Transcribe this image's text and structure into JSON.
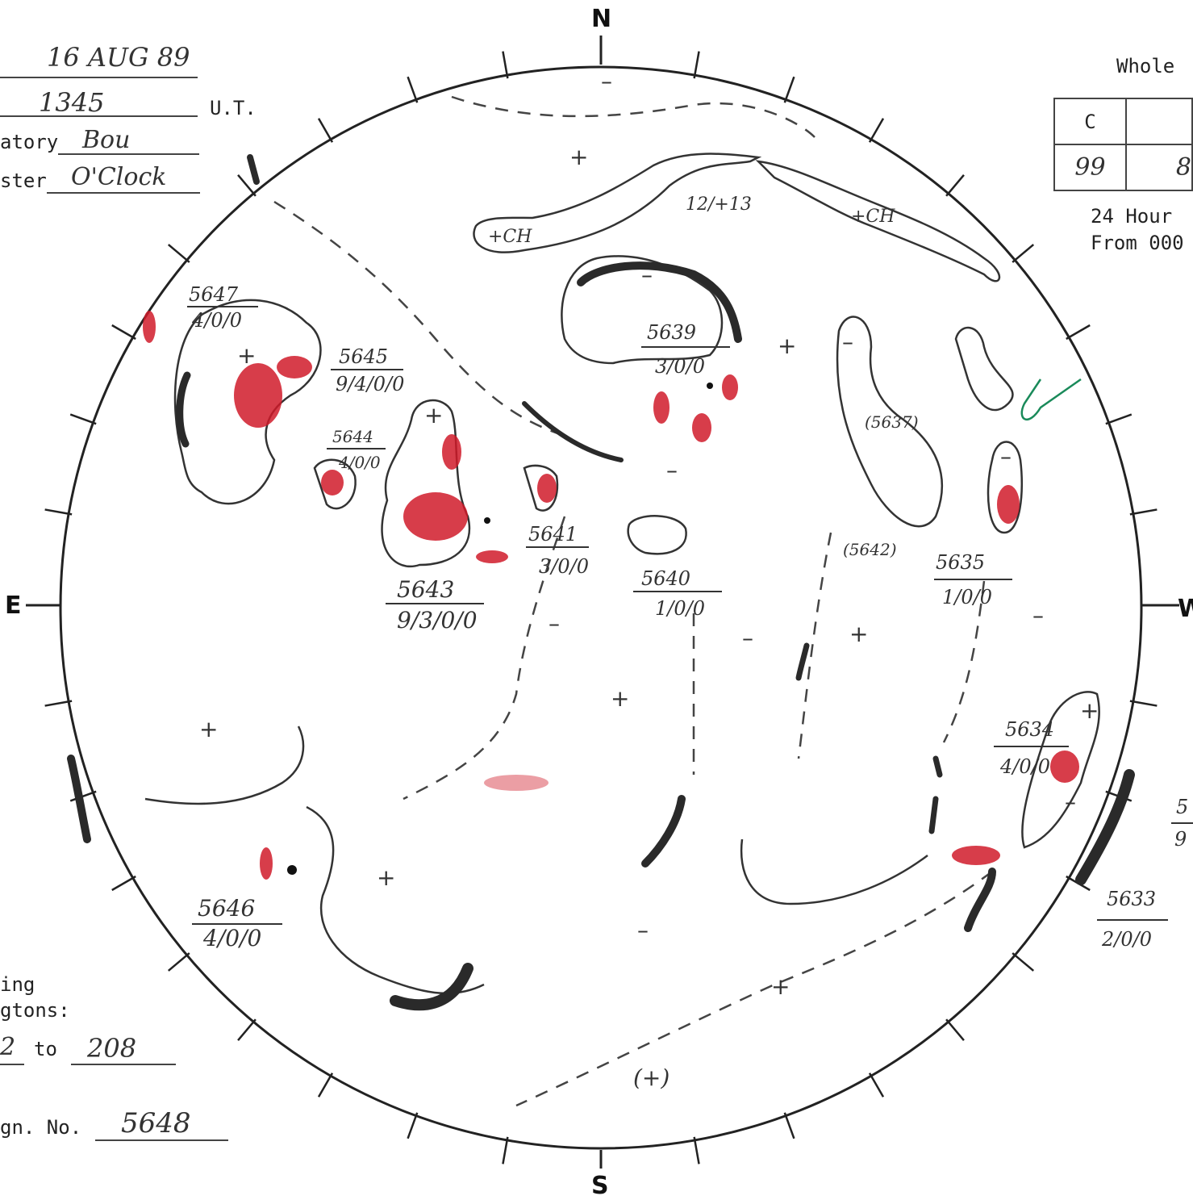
{
  "header": {
    "date": "16 AUG 89",
    "time": "1345",
    "time_unit": "U.T.",
    "observatory_label": "atory",
    "observatory": "Bou",
    "forecaster_label": "ster",
    "forecaster": "O'Clock"
  },
  "whole_disk": {
    "title": "Whole",
    "columns": [
      "C",
      ""
    ],
    "values": [
      "99",
      "8"
    ],
    "note_line1": "24 Hour",
    "note_line2": "From 000"
  },
  "compass": {
    "north": "N",
    "south": "S",
    "east": "E",
    "west": "W"
  },
  "footer": {
    "line1": "ing",
    "line2": "gtons:",
    "range_start": "2",
    "range_to": "to",
    "range_end": "208",
    "rotation_label": "gn. No.",
    "rotation": "5648"
  },
  "regions": [
    {
      "number": "5647",
      "class": "4/0/0"
    },
    {
      "number": "5645",
      "class": "9/4/0/0"
    },
    {
      "number": "5644",
      "class": "4/0/0"
    },
    {
      "number": "5643",
      "class": "9/3/0/0"
    },
    {
      "number": "5641",
      "class": "3/0/0"
    },
    {
      "number": "5639",
      "class": "3/0/0"
    },
    {
      "number": "5640",
      "class": "1/0/0"
    },
    {
      "number": "(5637)",
      "class": ""
    },
    {
      "number": "(5642)",
      "class": ""
    },
    {
      "number": "5635",
      "class": "1/0/0"
    },
    {
      "number": "5634",
      "class": "4/0/0"
    },
    {
      "number": "5633",
      "class": "2/0/0"
    },
    {
      "number": "5646",
      "class": "4/0/0"
    },
    {
      "number": "5",
      "class": "9"
    }
  ],
  "annotations": {
    "coronal_hole_1": "+CH",
    "coronal_hole_2": "+CH",
    "fraction": "12/+13",
    "plus": "+",
    "minus": "–",
    "plus_paren": "(+)"
  },
  "colors": {
    "ink": "#333333",
    "plage": "#d01a2a",
    "filament": "#2a2a2a",
    "green_mark": "#1a8a5a"
  }
}
